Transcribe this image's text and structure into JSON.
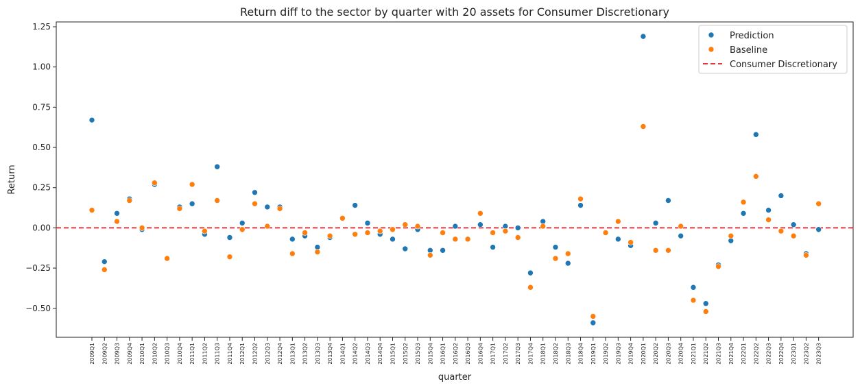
{
  "chart_data": {
    "type": "scatter",
    "title": "Return diff to the sector by quarter with 20 assets for Consumer Discretionary",
    "xlabel": "quarter",
    "ylabel": "Return",
    "ylim": [
      -0.68,
      1.28
    ],
    "yticks": [
      1.25,
      1.0,
      0.75,
      0.5,
      0.25,
      0.0,
      -0.25,
      -0.5
    ],
    "ytick_labels": [
      "1.25",
      "1.00",
      "0.75",
      "0.50",
      "0.25",
      "0.00",
      "−0.25",
      "−0.50"
    ],
    "grid": false,
    "legend_position": "top-right",
    "categories": [
      "2009Q1",
      "2009Q2",
      "2009Q3",
      "2009Q4",
      "2010Q1",
      "2010Q2",
      "2010Q3",
      "2010Q4",
      "2011Q1",
      "2011Q2",
      "2011Q3",
      "2011Q4",
      "2012Q1",
      "2012Q2",
      "2012Q3",
      "2012Q4",
      "2013Q1",
      "2013Q2",
      "2013Q3",
      "2013Q4",
      "2014Q1",
      "2014Q2",
      "2014Q3",
      "2014Q4",
      "2015Q1",
      "2015Q2",
      "2015Q3",
      "2015Q4",
      "2016Q1",
      "2016Q2",
      "2016Q3",
      "2016Q4",
      "2017Q1",
      "2017Q2",
      "2017Q3",
      "2017Q4",
      "2018Q1",
      "2018Q2",
      "2018Q3",
      "2018Q4",
      "2019Q1",
      "2019Q2",
      "2019Q3",
      "2019Q4",
      "2020Q1",
      "2020Q2",
      "2020Q3",
      "2020Q4",
      "2021Q1",
      "2021Q2",
      "2021Q3",
      "2021Q4",
      "2022Q1",
      "2022Q2",
      "2022Q3",
      "2022Q4",
      "2023Q1",
      "2023Q2",
      "2023Q3"
    ],
    "series": [
      {
        "name": "Prediction",
        "color": "#1f77b4",
        "values": [
          0.67,
          -0.21,
          0.09,
          0.18,
          -0.01,
          0.27,
          null,
          0.13,
          0.15,
          -0.04,
          0.38,
          -0.06,
          0.03,
          0.22,
          0.13,
          0.13,
          -0.07,
          -0.05,
          -0.12,
          -0.06,
          null,
          0.14,
          0.03,
          -0.04,
          -0.07,
          -0.13,
          -0.01,
          -0.14,
          -0.14,
          0.01,
          -0.07,
          0.02,
          -0.12,
          0.01,
          0.0,
          -0.28,
          0.04,
          -0.12,
          -0.22,
          0.14,
          -0.59,
          null,
          -0.07,
          -0.11,
          1.19,
          0.03,
          0.17,
          -0.05,
          -0.37,
          -0.47,
          -0.23,
          -0.08,
          0.09,
          0.58,
          0.11,
          0.2,
          0.02,
          -0.16,
          -0.01
        ]
      },
      {
        "name": "Baseline",
        "color": "#ff7f0e",
        "values": [
          0.11,
          -0.26,
          0.04,
          0.17,
          0.0,
          0.28,
          -0.19,
          0.12,
          0.27,
          -0.02,
          0.17,
          -0.18,
          -0.01,
          0.15,
          0.01,
          0.12,
          -0.16,
          -0.03,
          -0.15,
          -0.05,
          0.06,
          -0.04,
          -0.03,
          -0.02,
          -0.01,
          0.02,
          0.01,
          -0.17,
          -0.03,
          -0.07,
          -0.07,
          0.09,
          -0.03,
          -0.02,
          -0.06,
          -0.37,
          0.01,
          -0.19,
          -0.16,
          0.18,
          -0.55,
          -0.03,
          0.04,
          -0.09,
          0.63,
          -0.14,
          -0.14,
          0.01,
          -0.45,
          -0.52,
          -0.24,
          -0.05,
          0.16,
          0.32,
          0.05,
          -0.02,
          -0.05,
          -0.17,
          0.15
        ]
      }
    ],
    "reference_line": {
      "name": "Consumer Discretionary",
      "value": 0.0,
      "color": "#e41a1c",
      "style": "dashed"
    }
  }
}
